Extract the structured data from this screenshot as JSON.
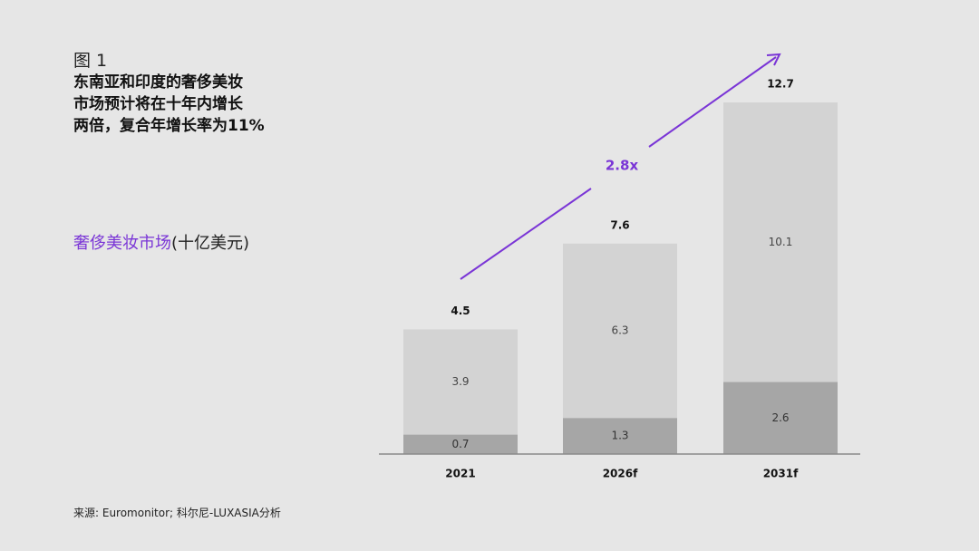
{
  "figure_label": "图 1",
  "title_lines": [
    "东南亚和印度的奢侈美妆",
    "市场预计将在十年内增长",
    "两倍，复合年增长率为11%"
  ],
  "subtitle": {
    "accent": "奢侈美妆市场",
    "unit": "(十亿美元)"
  },
  "source": "来源: Euromonitor; 科尔尼-LUXASIA分析",
  "colors": {
    "background": "#e6e6e6",
    "upper_segment": "#d3d3d3",
    "lower_segment": "#a6a6a6",
    "accent": "#7a35d6",
    "axis": "#8a8a8a"
  },
  "chart_data": {
    "type": "bar",
    "stacked": true,
    "categories": [
      "2021",
      "2026f",
      "2031f"
    ],
    "series": [
      {
        "values": [
          0.7,
          1.3,
          2.6
        ]
      },
      {
        "values": [
          3.9,
          6.3,
          10.1
        ]
      }
    ],
    "totals": [
      "4.5",
      "7.6",
      "12.7"
    ],
    "segment_labels": [
      [
        "0.7",
        "1.3",
        "2.6"
      ],
      [
        "3.9",
        "6.3",
        "10.1"
      ]
    ],
    "annotation": "2.8x",
    "ylim": [
      0,
      12.7
    ],
    "grid": false
  }
}
